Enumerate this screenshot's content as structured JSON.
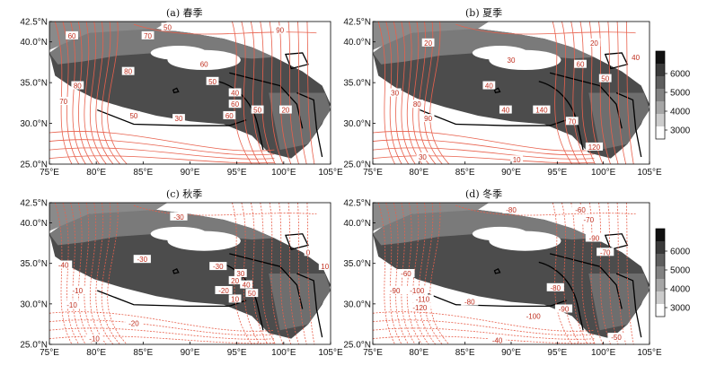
{
  "panels": [
    {
      "id": "a",
      "title": "(a) 春季",
      "labels": [
        "60",
        "70",
        "50",
        "90",
        "80",
        "60",
        "50",
        "40",
        "20",
        "80",
        "70",
        "50",
        "30",
        "60",
        "60",
        "50"
      ]
    },
    {
      "id": "b",
      "title": "(b) 夏季",
      "labels": [
        "20",
        "30",
        "40",
        "30",
        "50",
        "60",
        "40",
        "30",
        "10",
        "20",
        "40",
        "80",
        "90",
        "140",
        "120",
        "70"
      ]
    },
    {
      "id": "c",
      "title": "(c) 秋季",
      "labels": [
        "-30",
        "-40",
        "-30",
        "-10",
        "-20",
        "-30",
        "-20",
        "-10",
        "10",
        "20",
        "30",
        "40",
        "50",
        "-10",
        "10",
        "0"
      ]
    },
    {
      "id": "d",
      "title": "(d) 冬季",
      "labels": [
        "-80",
        "-70",
        "-90",
        "-60",
        "-100",
        "-110",
        "-120",
        "-80",
        "-90",
        "-100",
        "-80",
        "-90",
        "-50",
        "-60",
        "-40",
        "-70"
      ]
    }
  ],
  "lat_ticks": [
    "42.5°N",
    "40.0°N",
    "35.0°N",
    "30.0°N",
    "25.0°N"
  ],
  "lon_ticks": [
    "75°E",
    "80°E",
    "85°E",
    "90°E",
    "95°E",
    "100°E",
    "105°E"
  ],
  "colorbar": {
    "ticks": [
      "6000",
      "5000",
      "4000",
      "3000"
    ],
    "colors": [
      "#111111",
      "#3a3a3a",
      "#5e5e5e",
      "#828282",
      "#a6a6a6",
      "#cccccc",
      "#ffffff"
    ]
  },
  "colors": {
    "contour": "#e8604c",
    "terrain_dark": "#4a4a4a",
    "boundary": "#000000"
  }
}
